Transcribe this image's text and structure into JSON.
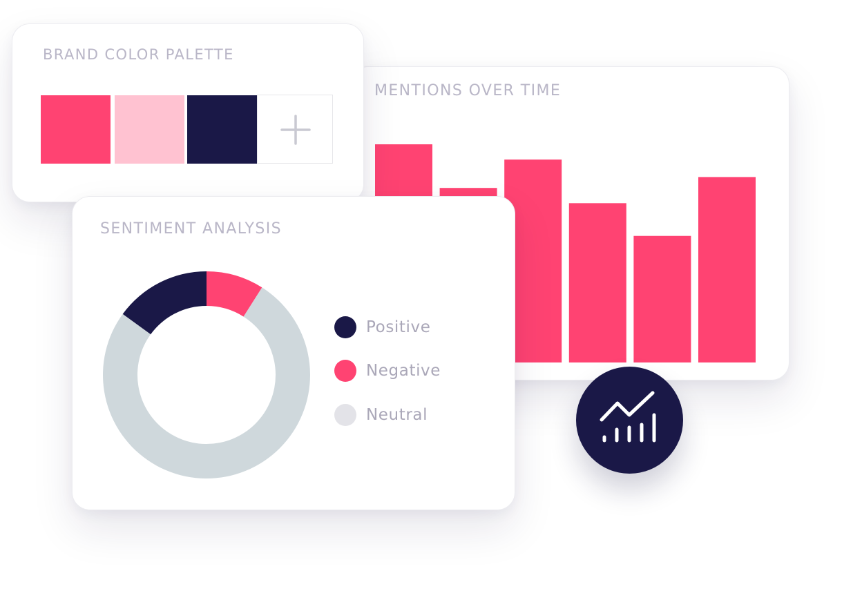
{
  "colors": {
    "brand_pink": "#ff4372",
    "light_pink": "#ffc2d1",
    "navy": "#1a1847",
    "neutral_gray": "#cfd8dc",
    "legend_neutral": "#e3e3e8",
    "title_gray": "#b9b6c7"
  },
  "palette": {
    "title": "BRAND COLOR PALETTE",
    "swatches": [
      {
        "color": "#ff4372"
      },
      {
        "color": "#ffc2d1"
      },
      {
        "color": "#1a1847"
      }
    ],
    "add_icon": "plus-icon"
  },
  "mentions": {
    "title": "MENTIONS OVER TIME"
  },
  "sentiment": {
    "title": "SENTIMENT ANALYSIS",
    "legend": [
      {
        "label": "Positive",
        "color": "#1a1847"
      },
      {
        "label": "Negative",
        "color": "#ff4372"
      },
      {
        "label": "Neutral",
        "color": "#e3e3e8"
      }
    ]
  },
  "badge": {
    "icon": "trend-chart-icon"
  },
  "chart_data": [
    {
      "type": "bar",
      "title": "MENTIONS OVER TIME",
      "categories": [
        "",
        "",
        "",
        "",
        "",
        ""
      ],
      "values": [
        100,
        80,
        93,
        73,
        58,
        85
      ],
      "ylim": [
        0,
        100
      ],
      "grid": false,
      "color": "#ff4372"
    },
    {
      "type": "pie",
      "title": "SENTIMENT ANALYSIS",
      "donut": true,
      "labels": [
        "Positive",
        "Negative",
        "Neutral"
      ],
      "values": [
        15,
        9,
        76
      ],
      "colors": [
        "#1a1847",
        "#ff4372",
        "#cfd8dc"
      ],
      "legend": "right"
    }
  ]
}
